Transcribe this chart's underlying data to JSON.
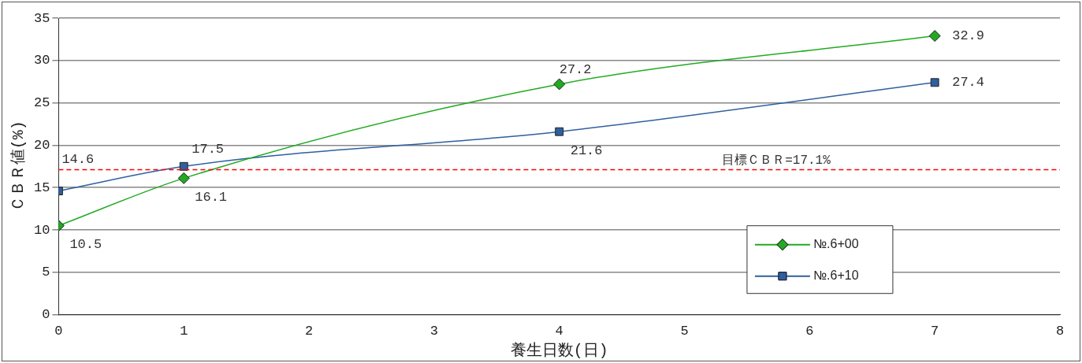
{
  "chart_data": {
    "type": "line",
    "xlabel": "養生日数(日)",
    "ylabel": "ＣＢＲ値(%)",
    "x": [
      0,
      1,
      4,
      7
    ],
    "series": [
      {
        "name": "№.6+00",
        "color": "#22aa22",
        "marker": "diamond",
        "values": [
          10.5,
          16.1,
          27.2,
          32.9
        ]
      },
      {
        "name": "№.6+10",
        "color": "#2f5f9f",
        "marker": "square",
        "values": [
          14.6,
          17.5,
          21.6,
          27.4
        ]
      }
    ],
    "xlim": [
      0,
      8
    ],
    "xticks": [
      0,
      1,
      2,
      3,
      4,
      5,
      6,
      7,
      8
    ],
    "ylim": [
      0,
      35
    ],
    "yticks": [
      0,
      5,
      10,
      15,
      20,
      25,
      30,
      35
    ],
    "grid": "y",
    "legend": "bottom right",
    "data_labels": true,
    "ref_lines": [
      {
        "axis": "y",
        "value": 17.1,
        "label": "目標ＣＢＲ=17.1%",
        "color": "#ff0000",
        "line_style": "dashed"
      }
    ]
  }
}
